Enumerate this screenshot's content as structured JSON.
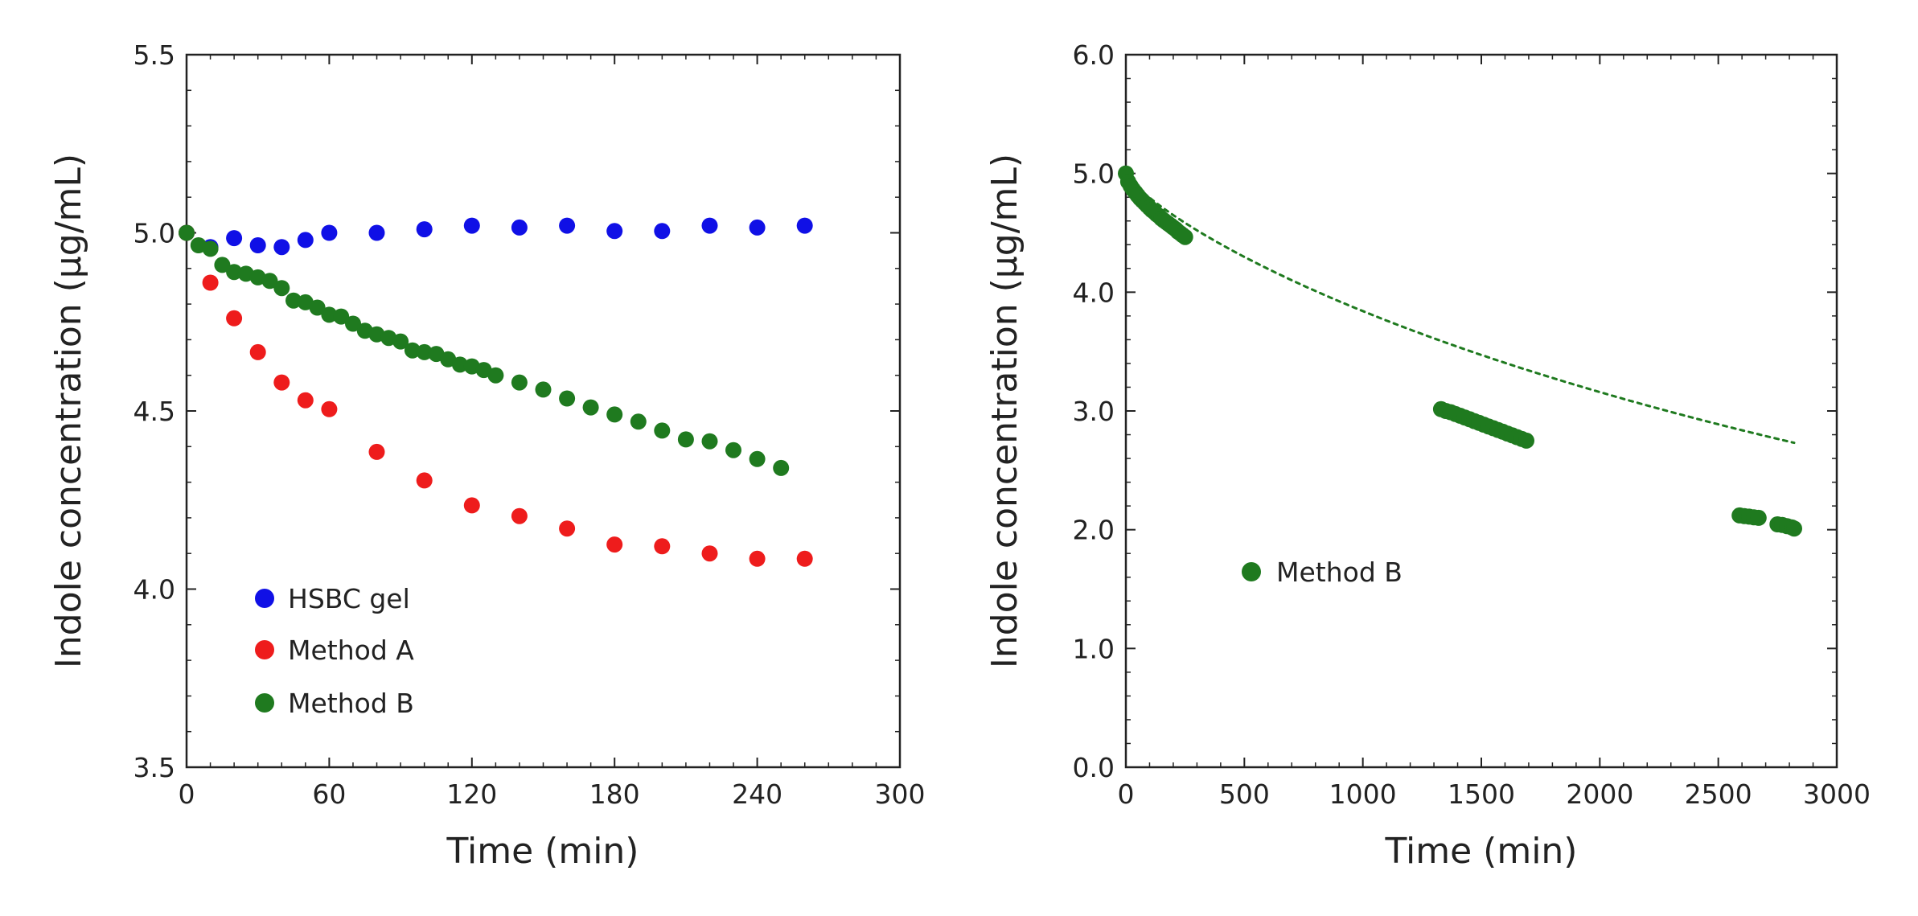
{
  "colors": {
    "blue": "#1010e6",
    "red": "#ee1c1c",
    "green": "#1f7a1f",
    "blue_text": "#2a2ab8",
    "red_text": "#b02a2a",
    "green_text": "#2a7a2a"
  },
  "chart_data": [
    {
      "type": "scatter",
      "xlabel": "Time (min)",
      "ylabel": "Indole concentration (μg/mL)",
      "xlim": [
        0,
        300
      ],
      "ylim": [
        3.5,
        5.5
      ],
      "xticks": [
        0,
        60,
        120,
        180,
        240,
        300
      ],
      "xtick_labels": [
        "0",
        "60",
        "120",
        "180",
        "240",
        "300"
      ],
      "yticks": [
        3.5,
        4.0,
        4.5,
        5.0,
        5.5
      ],
      "ytick_labels": [
        "3.5",
        "4.0",
        "4.5",
        "5.0",
        "5.5"
      ],
      "legend_position": "lower-left",
      "series": [
        {
          "name": "HSBC gel",
          "color": "blue",
          "x": [
            0,
            10,
            20,
            30,
            40,
            50,
            60,
            80,
            100,
            120,
            140,
            160,
            180,
            200,
            220,
            240,
            260
          ],
          "y": [
            5.0,
            4.96,
            4.985,
            4.965,
            4.96,
            4.98,
            5.0,
            5.0,
            5.01,
            5.02,
            5.015,
            5.02,
            5.005,
            5.005,
            5.02,
            5.015,
            5.02
          ]
        },
        {
          "name": "Method A",
          "color": "red",
          "x": [
            0,
            10,
            20,
            30,
            40,
            50,
            60,
            80,
            100,
            120,
            140,
            160,
            180,
            200,
            220,
            240,
            260
          ],
          "y": [
            5.0,
            4.86,
            4.76,
            4.665,
            4.58,
            4.53,
            4.505,
            4.385,
            4.305,
            4.235,
            4.205,
            4.17,
            4.125,
            4.12,
            4.1,
            4.085,
            4.085
          ]
        },
        {
          "name": "Method B",
          "color": "green",
          "x": [
            0,
            5,
            10,
            15,
            20,
            25,
            30,
            35,
            40,
            45,
            50,
            55,
            60,
            65,
            70,
            75,
            80,
            85,
            90,
            95,
            100,
            105,
            110,
            115,
            120,
            125,
            130,
            140,
            150,
            160,
            170,
            180,
            190,
            200,
            210,
            220,
            230,
            240,
            250
          ],
          "y": [
            5.0,
            4.965,
            4.955,
            4.91,
            4.89,
            4.885,
            4.875,
            4.865,
            4.845,
            4.81,
            4.805,
            4.79,
            4.77,
            4.765,
            4.745,
            4.725,
            4.715,
            4.705,
            4.695,
            4.67,
            4.665,
            4.66,
            4.645,
            4.63,
            4.625,
            4.615,
            4.6,
            4.58,
            4.56,
            4.535,
            4.51,
            4.49,
            4.47,
            4.445,
            4.42,
            4.415,
            4.39,
            4.365,
            4.34
          ]
        }
      ]
    },
    {
      "type": "scatter",
      "xlabel": "Time (min)",
      "ylabel": "Indole concentration (μg/mL)",
      "xlim": [
        0,
        3000
      ],
      "ylim": [
        0.0,
        6.0
      ],
      "xticks": [
        0,
        500,
        1000,
        1500,
        2000,
        2500,
        3000
      ],
      "xtick_labels": [
        "0",
        "500",
        "1000",
        "1500",
        "2000",
        "2500",
        "3000"
      ],
      "yticks": [
        0,
        1,
        2,
        3,
        4,
        5,
        6
      ],
      "ytick_labels": [
        "0.0",
        "1.0",
        "2.0",
        "3.0",
        "4.0",
        "5.0",
        "6.0"
      ],
      "legend_position": "center-left",
      "fit_line": {
        "style": "dotted",
        "color": "green",
        "x_range": [
          0,
          2820
        ],
        "a": 5.0,
        "b": 0.00105,
        "p": 0.8
      },
      "series": [
        {
          "name": "Method B",
          "color": "green",
          "x": [
            0,
            10,
            20,
            30,
            40,
            50,
            60,
            70,
            80,
            90,
            100,
            110,
            120,
            130,
            140,
            150,
            160,
            170,
            180,
            190,
            200,
            210,
            220,
            230,
            240,
            250,
            1330,
            1350,
            1370,
            1390,
            1410,
            1430,
            1450,
            1470,
            1490,
            1510,
            1530,
            1550,
            1570,
            1590,
            1610,
            1630,
            1650,
            1670,
            1690,
            2590,
            2610,
            2630,
            2650,
            2670,
            2750,
            2770,
            2790,
            2810,
            2820
          ],
          "y": [
            5.0,
            4.93,
            4.895,
            4.865,
            4.84,
            4.815,
            4.79,
            4.77,
            4.75,
            4.73,
            4.71,
            4.69,
            4.675,
            4.655,
            4.64,
            4.62,
            4.605,
            4.59,
            4.575,
            4.56,
            4.545,
            4.53,
            4.51,
            4.495,
            4.48,
            4.465,
            3.015,
            3.0,
            2.99,
            2.975,
            2.96,
            2.945,
            2.93,
            2.915,
            2.9,
            2.885,
            2.87,
            2.855,
            2.84,
            2.825,
            2.81,
            2.795,
            2.78,
            2.765,
            2.75,
            2.12,
            2.115,
            2.11,
            2.105,
            2.1,
            2.045,
            2.04,
            2.03,
            2.02,
            2.01
          ]
        }
      ]
    }
  ]
}
